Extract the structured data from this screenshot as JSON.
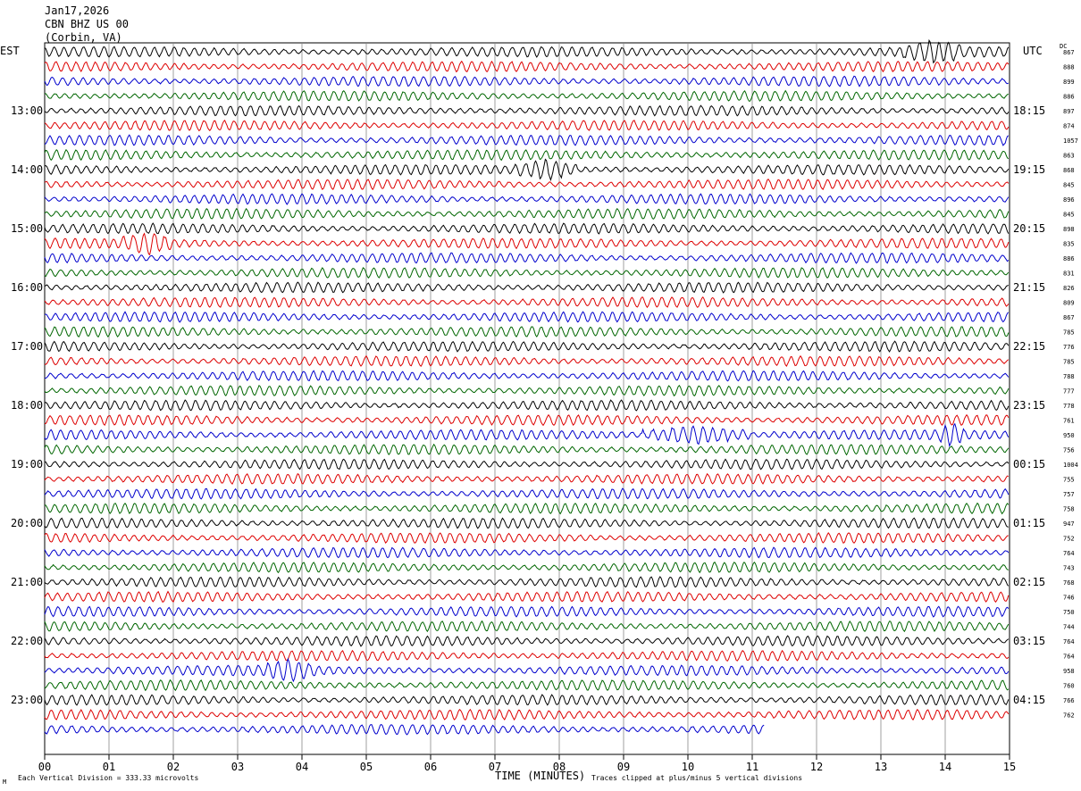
{
  "header": {
    "date": "Jan17,2026",
    "station": "CBN BHZ US 00",
    "location": "(Corbin, VA)"
  },
  "tz_left": "EST",
  "tz_right": "UTC",
  "dc_label": "DC",
  "footer": {
    "left": "Each Vertical Division =  333.33 microvolts",
    "right": "Traces clipped at plus/minus 5 vertical divisions",
    "corner": "M"
  },
  "colors": [
    "#000000",
    "#dd0000",
    "#0000cc",
    "#006600"
  ],
  "chart_data": {
    "type": "line",
    "title": "",
    "xlabel": "TIME (MINUTES)",
    "ylabel": "",
    "xlim": [
      0,
      15
    ],
    "x_ticks": [
      "00",
      "01",
      "02",
      "03",
      "04",
      "05",
      "06",
      "07",
      "08",
      "09",
      "10",
      "11",
      "12",
      "13",
      "14",
      "15"
    ],
    "trace_count": 47,
    "traces_per_hour": 4,
    "color_cycle": [
      "black",
      "red",
      "blue",
      "green"
    ],
    "last_trace_end_minute": 11.2,
    "left_hour_labels": [
      "13:00",
      "14:00",
      "15:00",
      "16:00",
      "17:00",
      "18:00",
      "19:00",
      "20:00",
      "21:00",
      "22:00",
      "23:00"
    ],
    "right_hour_labels": [
      "18:15",
      "19:15",
      "20:15",
      "21:15",
      "22:15",
      "23:15",
      "00:15",
      "01:15",
      "02:15",
      "03:15",
      "04:15"
    ],
    "dc_values": [
      "867",
      "888",
      "899",
      "886",
      "897",
      "874",
      "1057",
      "863",
      "868",
      "845",
      "896",
      "845",
      "898",
      "835",
      "886",
      "831",
      "826",
      "809",
      "867",
      "785",
      "776",
      "785",
      "788",
      "777",
      "778",
      "761",
      "950",
      "756",
      "1004",
      "755",
      "757",
      "758",
      "947",
      "752",
      "764",
      "743",
      "768",
      "746",
      "750",
      "744",
      "764",
      "764",
      "958",
      "760",
      "766",
      "762"
    ],
    "events": [
      {
        "trace": 0,
        "start_minute": 13.3,
        "end_minute": 14.3,
        "note": "high amplitude"
      },
      {
        "trace": 8,
        "start_minute": 7.3,
        "end_minute": 8.3,
        "note": "burst"
      },
      {
        "trace": 13,
        "start_minute": 1.2,
        "end_minute": 2.0,
        "note": "burst"
      },
      {
        "trace": 26,
        "start_minute": 9.3,
        "end_minute": 11.0,
        "note": "event"
      },
      {
        "trace": 26,
        "start_minute": 13.9,
        "end_minute": 14.3,
        "note": "burst"
      },
      {
        "trace": 42,
        "start_minute": 3.4,
        "end_minute": 4.2,
        "note": "burst"
      }
    ]
  }
}
